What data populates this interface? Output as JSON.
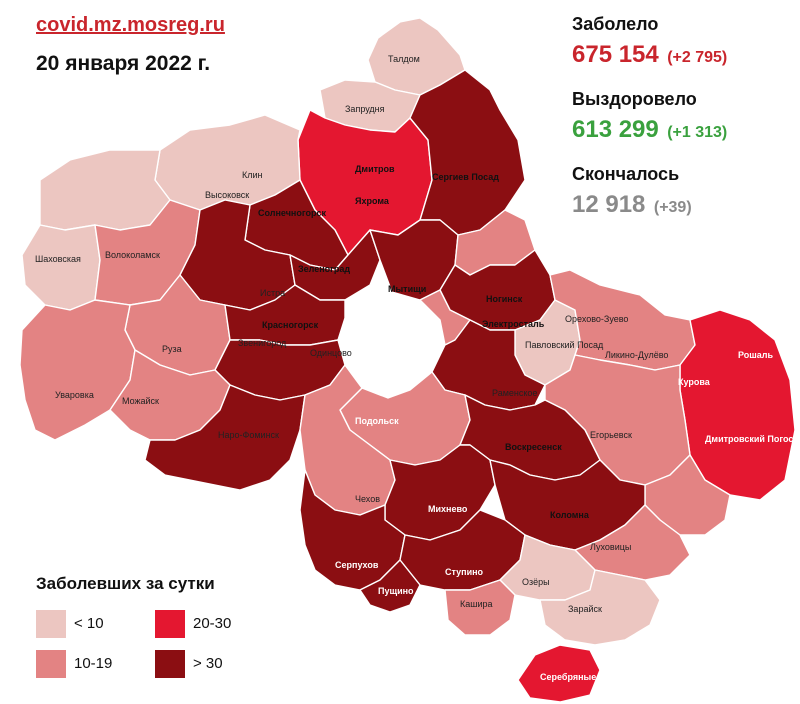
{
  "header": {
    "source": "covid.mz.mosreg.ru",
    "date": "20 января 2022 г."
  },
  "stats": {
    "infected": {
      "label": "Заболело",
      "value": "675 154",
      "delta": "(+2 795)",
      "color": "#c9252c"
    },
    "recovered": {
      "label": "Выздоровело",
      "value": "613 299",
      "delta": "(+1 313)",
      "color": "#3aa13e"
    },
    "deceased": {
      "label": "Скончалось",
      "value": "12 918",
      "delta": "(+39)",
      "color": "#8a8a8a"
    }
  },
  "legend": {
    "title": "Заболевших за сутки",
    "items": [
      {
        "label": "< 10",
        "color": "#ecc6c1"
      },
      {
        "label": "10-19",
        "color": "#e38383"
      },
      {
        "label": "20-30",
        "color": "#e41730"
      },
      {
        "label": "> 30",
        "color": "#8b0e12"
      }
    ]
  },
  "map": {
    "labels": {
      "taldom": "Талдом",
      "zaprudnya": "Запрудня",
      "dmitrov": "Дмитров",
      "yakhroma": "Яхрома",
      "sergiev_posad": "Сергиев Посад",
      "klin": "Клин",
      "vysokovsk": "Высоковск",
      "solnechnogorsk": "Солнечногорск",
      "shakhovskaya": "Шаховская",
      "volokolamsk": "Волоколамск",
      "zelenograd": "Зеленоград",
      "mytishchi": "Мытищи",
      "istra": "Истра",
      "krasnogorsk": "Красногорск",
      "zvenigorod": "Звенигород",
      "odintsovo": "Одинцово",
      "ruza": "Руза",
      "uvarovka": "Уваровка",
      "mozhaysk": "Можайск",
      "naro_fominsk": "Наро-Фоминск",
      "noginsk": "Ногинск",
      "elektrostal": "Электросталь",
      "orekhovo_zuevo": "Орехово-Зуево",
      "pavlovsky_posad": "Павловский Посад",
      "likino_dulevo": "Ликино-Дулёво",
      "roshal": "Рошаль",
      "kurovskoe": "Курова",
      "ramenskoe": "Раменское",
      "podolsk": "Подольск",
      "egorevsk": "Егорьевск",
      "dmitrovsky_pogost": "Дмитровский Погост",
      "voskresensk": "Воскресенск",
      "chekhov": "Чехов",
      "mikhnevo": "Михнево",
      "kolomna": "Коломна",
      "serpukhov": "Серпухов",
      "pushchino": "Пущино",
      "stupino": "Ступино",
      "lukhovitsy": "Луховицы",
      "ozyory": "Озёры",
      "kashira": "Кашира",
      "zaraysk": "Зарайск",
      "serebryanye_prudy": "Серебряные Пруды"
    }
  }
}
